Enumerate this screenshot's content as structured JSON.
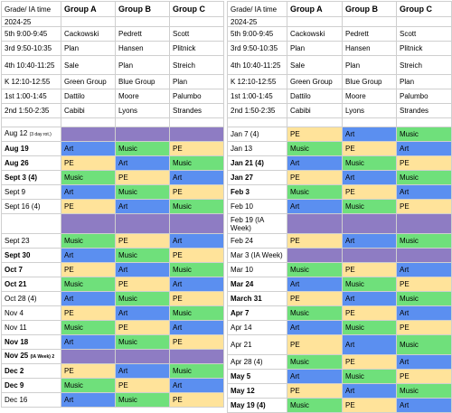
{
  "headers": [
    "Grade/ IA time",
    "Group A",
    "Group B",
    "Group C"
  ],
  "left": {
    "top_rows": [
      [
        "2024-25",
        "",
        "",
        ""
      ],
      [
        "5th 9:00-9:45",
        "Cackowski",
        "Pedrett",
        "Scott"
      ],
      [
        "3rd 9:50-10:35",
        "Plan",
        "Hansen",
        "Plitnick"
      ],
      [
        "4th 10:40-11:25",
        "Sale",
        "Plan",
        "Streich"
      ],
      [
        "K 12:10-12:55",
        "Green Group",
        "Blue Group",
        "Plan"
      ],
      [
        "1st 1:00-1:45",
        "Dattilo",
        "Moore",
        "Palumbo"
      ],
      [
        "2nd 1:50-2:35",
        "Cabibi",
        "Lyons",
        "Strandes"
      ]
    ],
    "weeks": [
      {
        "date": "Aug 12",
        "note": "(3 day rot.)",
        "bold": false,
        "a": "",
        "b": "",
        "c": "",
        "purple": true
      },
      {
        "date": "Aug 19",
        "bold": true,
        "a": "Art",
        "b": "Music",
        "c": "PE"
      },
      {
        "date": "Aug 26",
        "bold": true,
        "a": "PE",
        "b": "Art",
        "c": "Music"
      },
      {
        "date": "Sept 3 (4)",
        "bold": true,
        "a": "Music",
        "b": "PE",
        "c": "Art"
      },
      {
        "date": "Sept 9",
        "bold": false,
        "a": "Art",
        "b": "Music",
        "c": "PE"
      },
      {
        "date": "Sept 16 (4)",
        "bold": false,
        "a": "PE",
        "b": "Art",
        "c": "Music"
      },
      {
        "date": "",
        "bold": false,
        "a": "",
        "b": "",
        "c": "",
        "purple": true
      },
      {
        "date": "Sept 23",
        "bold": false,
        "a": "Music",
        "b": "PE",
        "c": "Art"
      },
      {
        "date": "Sept 30",
        "bold": true,
        "a": "Art",
        "b": "Music",
        "c": "PE"
      },
      {
        "date": "Oct 7",
        "bold": true,
        "a": "PE",
        "b": "Art",
        "c": "Music"
      },
      {
        "date": "Oct 21",
        "bold": true,
        "a": "Music",
        "b": "PE",
        "c": "Art"
      },
      {
        "date": "Oct 28 (4)",
        "bold": false,
        "a": "Art",
        "b": "Music",
        "c": "PE"
      },
      {
        "date": "Nov 4",
        "bold": false,
        "a": "PE",
        "b": "Art",
        "c": "Music"
      },
      {
        "date": "Nov 11",
        "bold": false,
        "a": "Music",
        "b": "PE",
        "c": "Art"
      },
      {
        "date": "Nov 18",
        "bold": true,
        "a": "Art",
        "b": "Music",
        "c": "PE"
      },
      {
        "date": "Nov 25",
        "note": "(IA Week) 2",
        "bold": true,
        "a": "",
        "b": "",
        "c": "",
        "purple": true
      },
      {
        "date": "Dec 2",
        "bold": true,
        "a": "PE",
        "b": "Art",
        "c": "Music"
      },
      {
        "date": "Dec 9",
        "bold": true,
        "a": "Music",
        "b": "PE",
        "c": "Art"
      },
      {
        "date": "Dec 16",
        "bold": false,
        "a": "Art",
        "b": "Music",
        "c": "PE"
      }
    ]
  },
  "right": {
    "top_rows": [
      [
        "2024-25",
        "",
        "",
        ""
      ],
      [
        "5th 9:00-9:45",
        "Cackowski",
        "Pedrett",
        "Scott"
      ],
      [
        "3rd 9:50-10:35",
        "Plan",
        "Hansen",
        "Plitnick"
      ],
      [
        "4th 10:40-11:25",
        "Sale",
        "Plan",
        "Streich"
      ],
      [
        "K 12:10-12:55",
        "Green Group",
        "Blue Group",
        "Plan"
      ],
      [
        "1st 1:00-1:45",
        "Dattilo",
        "Moore",
        "Palumbo"
      ],
      [
        "2nd 1:50-2:35",
        "Cabibi",
        "Lyons",
        "Strandes"
      ]
    ],
    "weeks": [
      {
        "date": "Jan 7 (4)",
        "bold": false,
        "a": "PE",
        "b": "Art",
        "c": "Music"
      },
      {
        "date": "Jan 13",
        "bold": false,
        "a": "Music",
        "b": "PE",
        "c": "Art"
      },
      {
        "date": "Jan 21 (4)",
        "bold": true,
        "a": "Art",
        "b": "Music",
        "c": "PE"
      },
      {
        "date": "Jan 27",
        "bold": true,
        "a": "PE",
        "b": "Art",
        "c": "Music"
      },
      {
        "date": "Feb 3",
        "bold": true,
        "a": "Music",
        "b": "PE",
        "c": "Art"
      },
      {
        "date": "Feb 10",
        "bold": false,
        "a": "Art",
        "b": "Music",
        "c": "PE"
      },
      {
        "date": "Feb 19 (IA Week)",
        "bold": false,
        "a": "",
        "b": "",
        "c": "",
        "purple": true
      },
      {
        "date": "Feb 24",
        "bold": false,
        "a": "PE",
        "b": "Art",
        "c": "Music"
      },
      {
        "date": "Mar 3 (IA Week)",
        "bold": false,
        "a": "",
        "b": "",
        "c": "",
        "purple": true
      },
      {
        "date": "Mar 10",
        "bold": false,
        "a": "Music",
        "b": "PE",
        "c": "Art"
      },
      {
        "date": "Mar 24",
        "bold": true,
        "a": "Art",
        "b": "Music",
        "c": "PE"
      },
      {
        "date": "March 31",
        "bold": true,
        "a": "PE",
        "b": "Art",
        "c": "Music"
      },
      {
        "date": "Apr 7",
        "bold": true,
        "a": "Music",
        "b": "PE",
        "c": "Art"
      },
      {
        "date": "Apr 14",
        "bold": false,
        "a": "Art",
        "b": "Music",
        "c": "PE"
      },
      {
        "date": "Apr 21",
        "bold": false,
        "a": "PE",
        "b": "Art",
        "c": "Music"
      },
      {
        "date": "Apr 28 (4)",
        "bold": false,
        "a": "Music",
        "b": "PE",
        "c": "Art"
      },
      {
        "date": "May 5",
        "bold": true,
        "a": "Art",
        "b": "Music",
        "c": "PE"
      },
      {
        "date": "May 12",
        "bold": true,
        "a": "PE",
        "b": "Art",
        "c": "Music"
      },
      {
        "date": "May 19 (4)",
        "bold": true,
        "a": "Music",
        "b": "PE",
        "c": "Art"
      }
    ]
  },
  "colors": {
    "Art": "#5b8ff0",
    "Music": "#6fe07b",
    "PE": "#ffe39a",
    "IA": "#8e7cc3"
  }
}
